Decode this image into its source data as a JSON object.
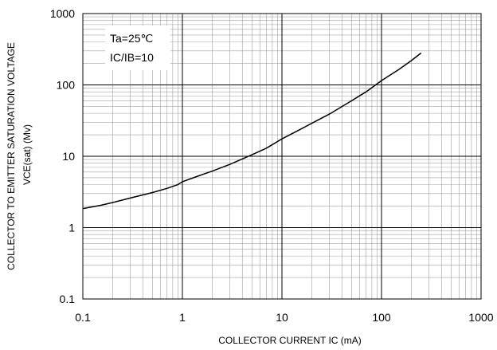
{
  "chart_data": {
    "type": "line",
    "title": "",
    "xlabel": "COLLECTOR CURRENT IC (mA)",
    "ylabel_line1": "COLLECTOR TO EMITTER SATURATION VOLTAGE",
    "ylabel_line2": "VCE(sat) (Mv)",
    "x_scale": "log",
    "y_scale": "log",
    "xlim": [
      0.1,
      1000
    ],
    "ylim": [
      0.1,
      1000
    ],
    "x_ticks": [
      "0.1",
      "1",
      "10",
      "100",
      "1000"
    ],
    "y_ticks": [
      "0.1",
      "1",
      "10",
      "100",
      "1000"
    ],
    "grid": true,
    "annotations": [
      "Ta=25℃",
      "IC/IB=10"
    ],
    "series": [
      {
        "color": "#000000",
        "x": [
          0.1,
          0.15,
          0.2,
          0.3,
          0.5,
          0.7,
          0.9,
          1,
          1.5,
          2,
          3,
          5,
          7,
          10,
          15,
          20,
          30,
          50,
          70,
          100,
          150,
          200,
          250
        ],
        "y": [
          1.85,
          2.05,
          2.25,
          2.6,
          3.1,
          3.55,
          4.0,
          4.4,
          5.4,
          6.2,
          7.7,
          10.5,
          13,
          17.5,
          23.5,
          29,
          39,
          60,
          80,
          115,
          165,
          220,
          280
        ]
      }
    ]
  }
}
